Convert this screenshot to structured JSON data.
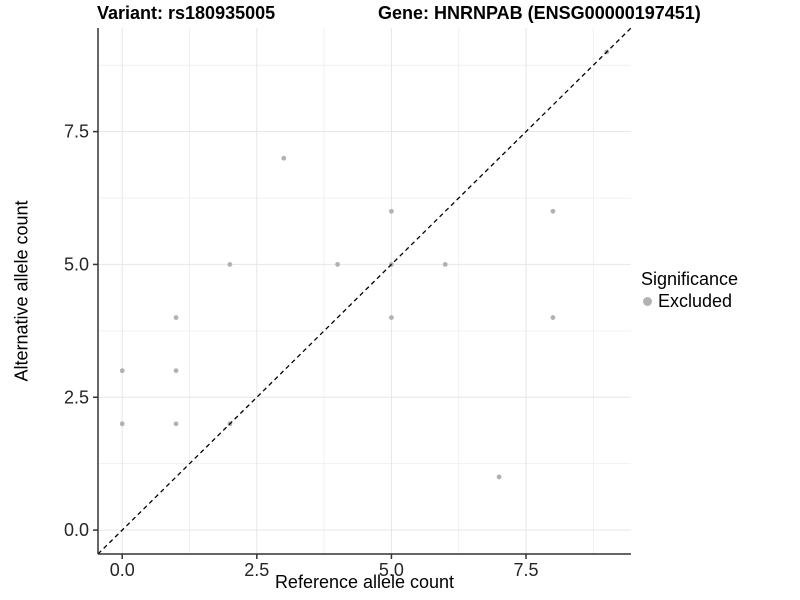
{
  "chart_data": {
    "type": "scatter",
    "title_left": "Variant: rs180935005",
    "title_right": "Gene: HNRNPAB (ENSG00000197451)",
    "xlabel": "Reference allele count",
    "ylabel": "Alternative allele count",
    "xlim": [
      -0.45,
      9.45
    ],
    "ylim": [
      -0.45,
      9.45
    ],
    "x_ticks": [
      {
        "value": 0,
        "label": "0.0"
      },
      {
        "value": 2.5,
        "label": "2.5"
      },
      {
        "value": 5,
        "label": "5.0"
      },
      {
        "value": 7.5,
        "label": "7.5"
      }
    ],
    "y_ticks": [
      {
        "value": 0,
        "label": "0.0"
      },
      {
        "value": 2.5,
        "label": "2.5"
      },
      {
        "value": 5,
        "label": "5.0"
      },
      {
        "value": 7.5,
        "label": "7.5"
      }
    ],
    "minor_breaks": [
      1.25,
      3.75,
      6.25,
      8.75
    ],
    "grid": true,
    "points": [
      [
        0,
        2
      ],
      [
        0,
        3
      ],
      [
        1,
        2
      ],
      [
        1,
        3
      ],
      [
        1,
        4
      ],
      [
        2,
        2
      ],
      [
        2,
        5
      ],
      [
        3,
        7
      ],
      [
        4,
        5
      ],
      [
        5,
        4
      ],
      [
        5,
        5
      ],
      [
        5,
        6
      ],
      [
        6,
        5
      ],
      [
        7,
        1
      ],
      [
        8,
        4
      ],
      [
        8,
        6
      ],
      [
        9,
        9
      ]
    ],
    "identity_line": {
      "from": [
        -0.45,
        -0.45
      ],
      "to": [
        9.45,
        9.45
      ],
      "style": "dashed",
      "color": "#000000"
    },
    "legend": {
      "title": "Significance",
      "position": "right",
      "items": [
        {
          "label": "Excluded",
          "color": "#b2b2b2"
        }
      ]
    },
    "colors": {
      "point": "#b2b2b2",
      "grid_major": "#e6e6e6",
      "grid_minor": "#f0f0f0",
      "axis_line": "#333333",
      "tick": "#333333",
      "axis_text": "#262626"
    }
  }
}
